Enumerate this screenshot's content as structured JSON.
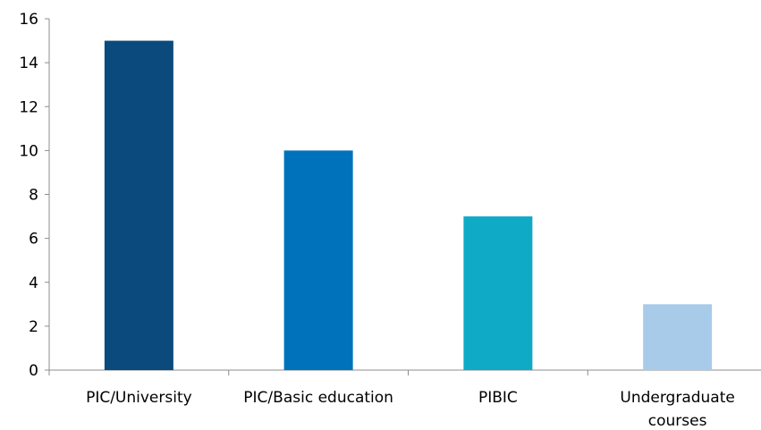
{
  "chart_data": {
    "type": "bar",
    "title": "",
    "xlabel": "",
    "ylabel": "",
    "categories": [
      [
        "PIC/University"
      ],
      [
        "PIC/Basic education"
      ],
      [
        "PIBIC"
      ],
      [
        "Undergraduate",
        "courses"
      ]
    ],
    "values": [
      15,
      10,
      7,
      3
    ],
    "colors": [
      "#0b4a7d",
      "#0072bc",
      "#0fabc6",
      "#a9cbea"
    ],
    "ylim": [
      0,
      16
    ],
    "yticks": [
      0,
      2,
      4,
      6,
      8,
      10,
      12,
      14,
      16
    ],
    "grid": false,
    "legend": "none"
  }
}
